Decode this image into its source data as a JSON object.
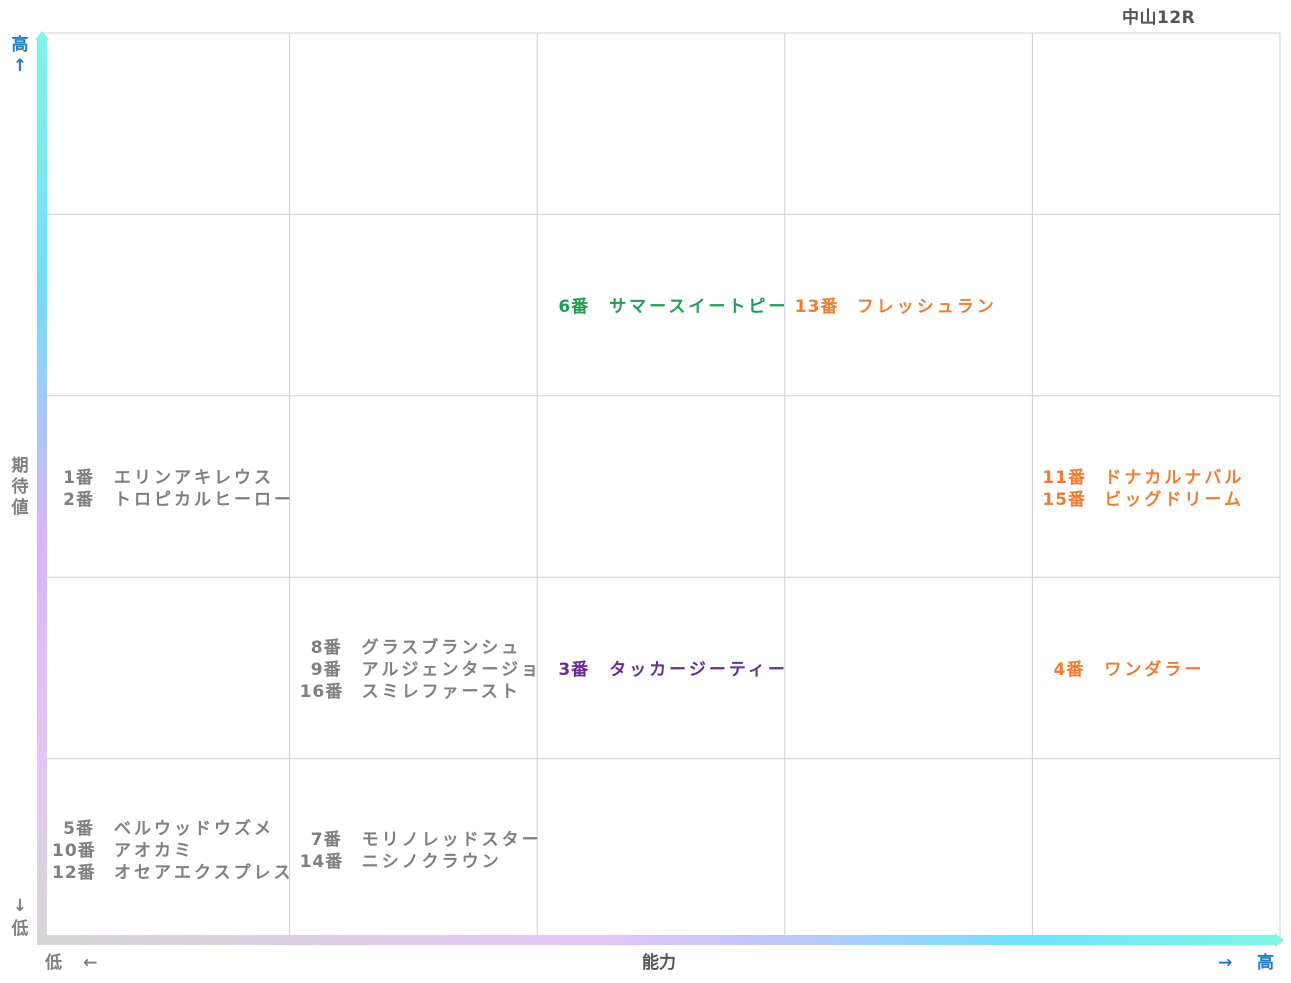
{
  "header": {
    "race": "中山12R"
  },
  "axes": {
    "y_label": "期待値",
    "y_high": "高",
    "y_high_arrow": "↑",
    "y_low_arrow": "↓",
    "y_low": "低",
    "x_label": "能力",
    "x_low": "低",
    "x_low_arrow": "←",
    "x_high_arrow": "→",
    "x_high": "高"
  },
  "colors": {
    "gray": "#7f7f7f",
    "green": "#1e9e4f",
    "orange": "#ee7d31",
    "purple": "#6a2c91",
    "blue": "#1f7ac7"
  },
  "chart_data": {
    "type": "table",
    "x_label": "能力",
    "y_label": "期待値",
    "columns": 5,
    "rows": 5,
    "cells": [
      {
        "col": 3,
        "row": 4,
        "color": "green",
        "horses": [
          {
            "num": "6番",
            "name": "サマースイートピー"
          }
        ]
      },
      {
        "col": 4,
        "row": 4,
        "color": "orange",
        "horses": [
          {
            "num": "13番",
            "name": "フレッシュラン"
          }
        ]
      },
      {
        "col": 1,
        "row": 3,
        "color": "gray",
        "horses": [
          {
            "num": "1番",
            "name": "エリンアキレウス"
          },
          {
            "num": "2番",
            "name": "トロピカルヒーロー"
          }
        ]
      },
      {
        "col": 5,
        "row": 3,
        "color": "orange",
        "horses": [
          {
            "num": "11番",
            "name": "ドナカルナバル"
          },
          {
            "num": "15番",
            "name": "ビッグドリーム"
          }
        ]
      },
      {
        "col": 2,
        "row": 2,
        "color": "gray",
        "horses": [
          {
            "num": "8番",
            "name": "グラスブランシュ"
          },
          {
            "num": "9番",
            "name": "アルジェンタージョ"
          },
          {
            "num": "16番",
            "name": "スミレファースト"
          }
        ]
      },
      {
        "col": 3,
        "row": 2,
        "color": "purple",
        "horses": [
          {
            "num": "3番",
            "name": "タッカージーティー"
          }
        ]
      },
      {
        "col": 5,
        "row": 2,
        "color": "orange",
        "horses": [
          {
            "num": "4番",
            "name": "ワンダラー"
          }
        ]
      },
      {
        "col": 1,
        "row": 1,
        "color": "gray",
        "horses": [
          {
            "num": "5番",
            "name": "ベルウッドウズメ"
          },
          {
            "num": "10番",
            "name": "アオカミ"
          },
          {
            "num": "12番",
            "name": "オセアエクスプレス"
          }
        ]
      },
      {
        "col": 2,
        "row": 1,
        "color": "gray",
        "horses": [
          {
            "num": "7番",
            "name": "モリノレッドスター"
          },
          {
            "num": "14番",
            "name": "ニシノクラウン"
          }
        ]
      }
    ]
  }
}
